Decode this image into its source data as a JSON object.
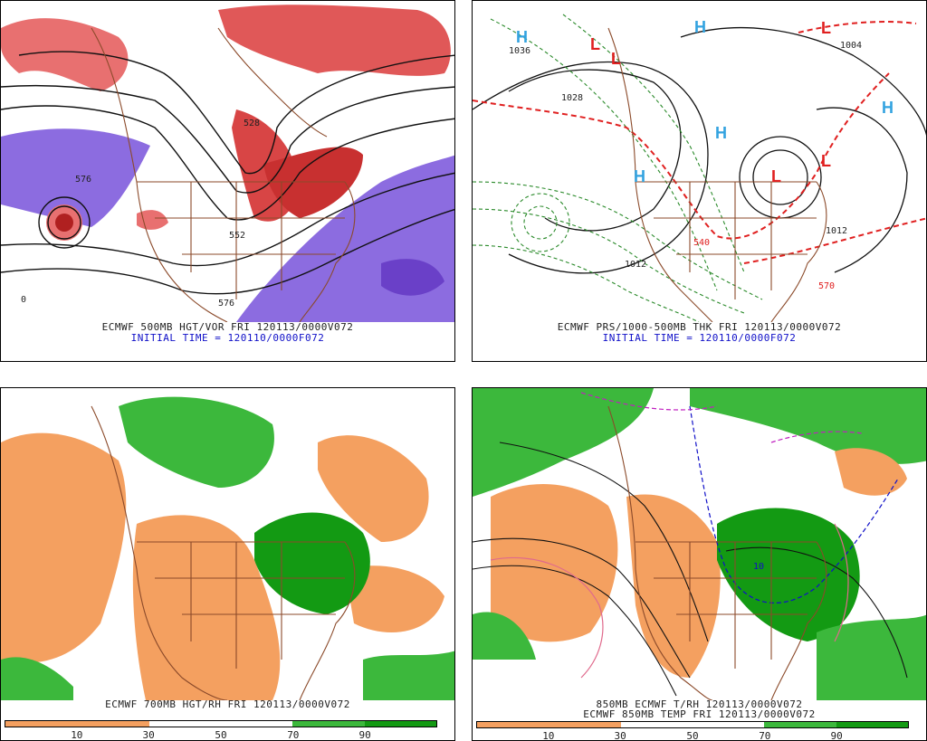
{
  "panels": [
    {
      "caption": "ECMWF 500MB HGT/VOR FRI 120113/0000V072",
      "subcaption": "INITIAL TIME = 120110/0000F072"
    },
    {
      "caption": "ECMWF PRS/1000-500MB THK FRI 120113/0000V072",
      "subcaption": "INITIAL TIME = 120110/0000F072"
    },
    {
      "caption": "ECMWF 700MB HGT/RH FRI 120113/0000V072"
    },
    {
      "caption": "850MB ECMWF T/RH 120113/0000V072",
      "subcaption": "ECMWF 850MB TEMP FRI 120113/0000V072"
    }
  ],
  "map_labels": {
    "p1": [
      "576",
      "528",
      "552",
      "576",
      "0"
    ],
    "p2": [
      "1036",
      "1028",
      "1012",
      "1004",
      "1012",
      "570",
      "540"
    ],
    "p4": [
      "10"
    ]
  },
  "pressure_centers": {
    "highs": [
      "H",
      "H",
      "H",
      "H",
      "H"
    ],
    "lows": [
      "L",
      "L",
      "L",
      "L",
      "L"
    ]
  },
  "colorbar": {
    "ticks": [
      "10",
      "30",
      "50",
      "70",
      "90"
    ],
    "colors": [
      "#f4a060",
      "#f4a060",
      "#ffffff",
      "#ffffff",
      "#3cb83c",
      "#139a13"
    ]
  },
  "colors": {
    "map_border": "#8b4a2a",
    "vorticity": "#d23c3c",
    "negative_vort": "#8c6ce0",
    "dry": "#f4a060",
    "moist": "#3cb83c",
    "very_moist": "#139a13",
    "thickness": "#e02020",
    "dashed_green": "#2a8a2a",
    "high_label": "#33a3e0",
    "low_label": "#e02020"
  }
}
